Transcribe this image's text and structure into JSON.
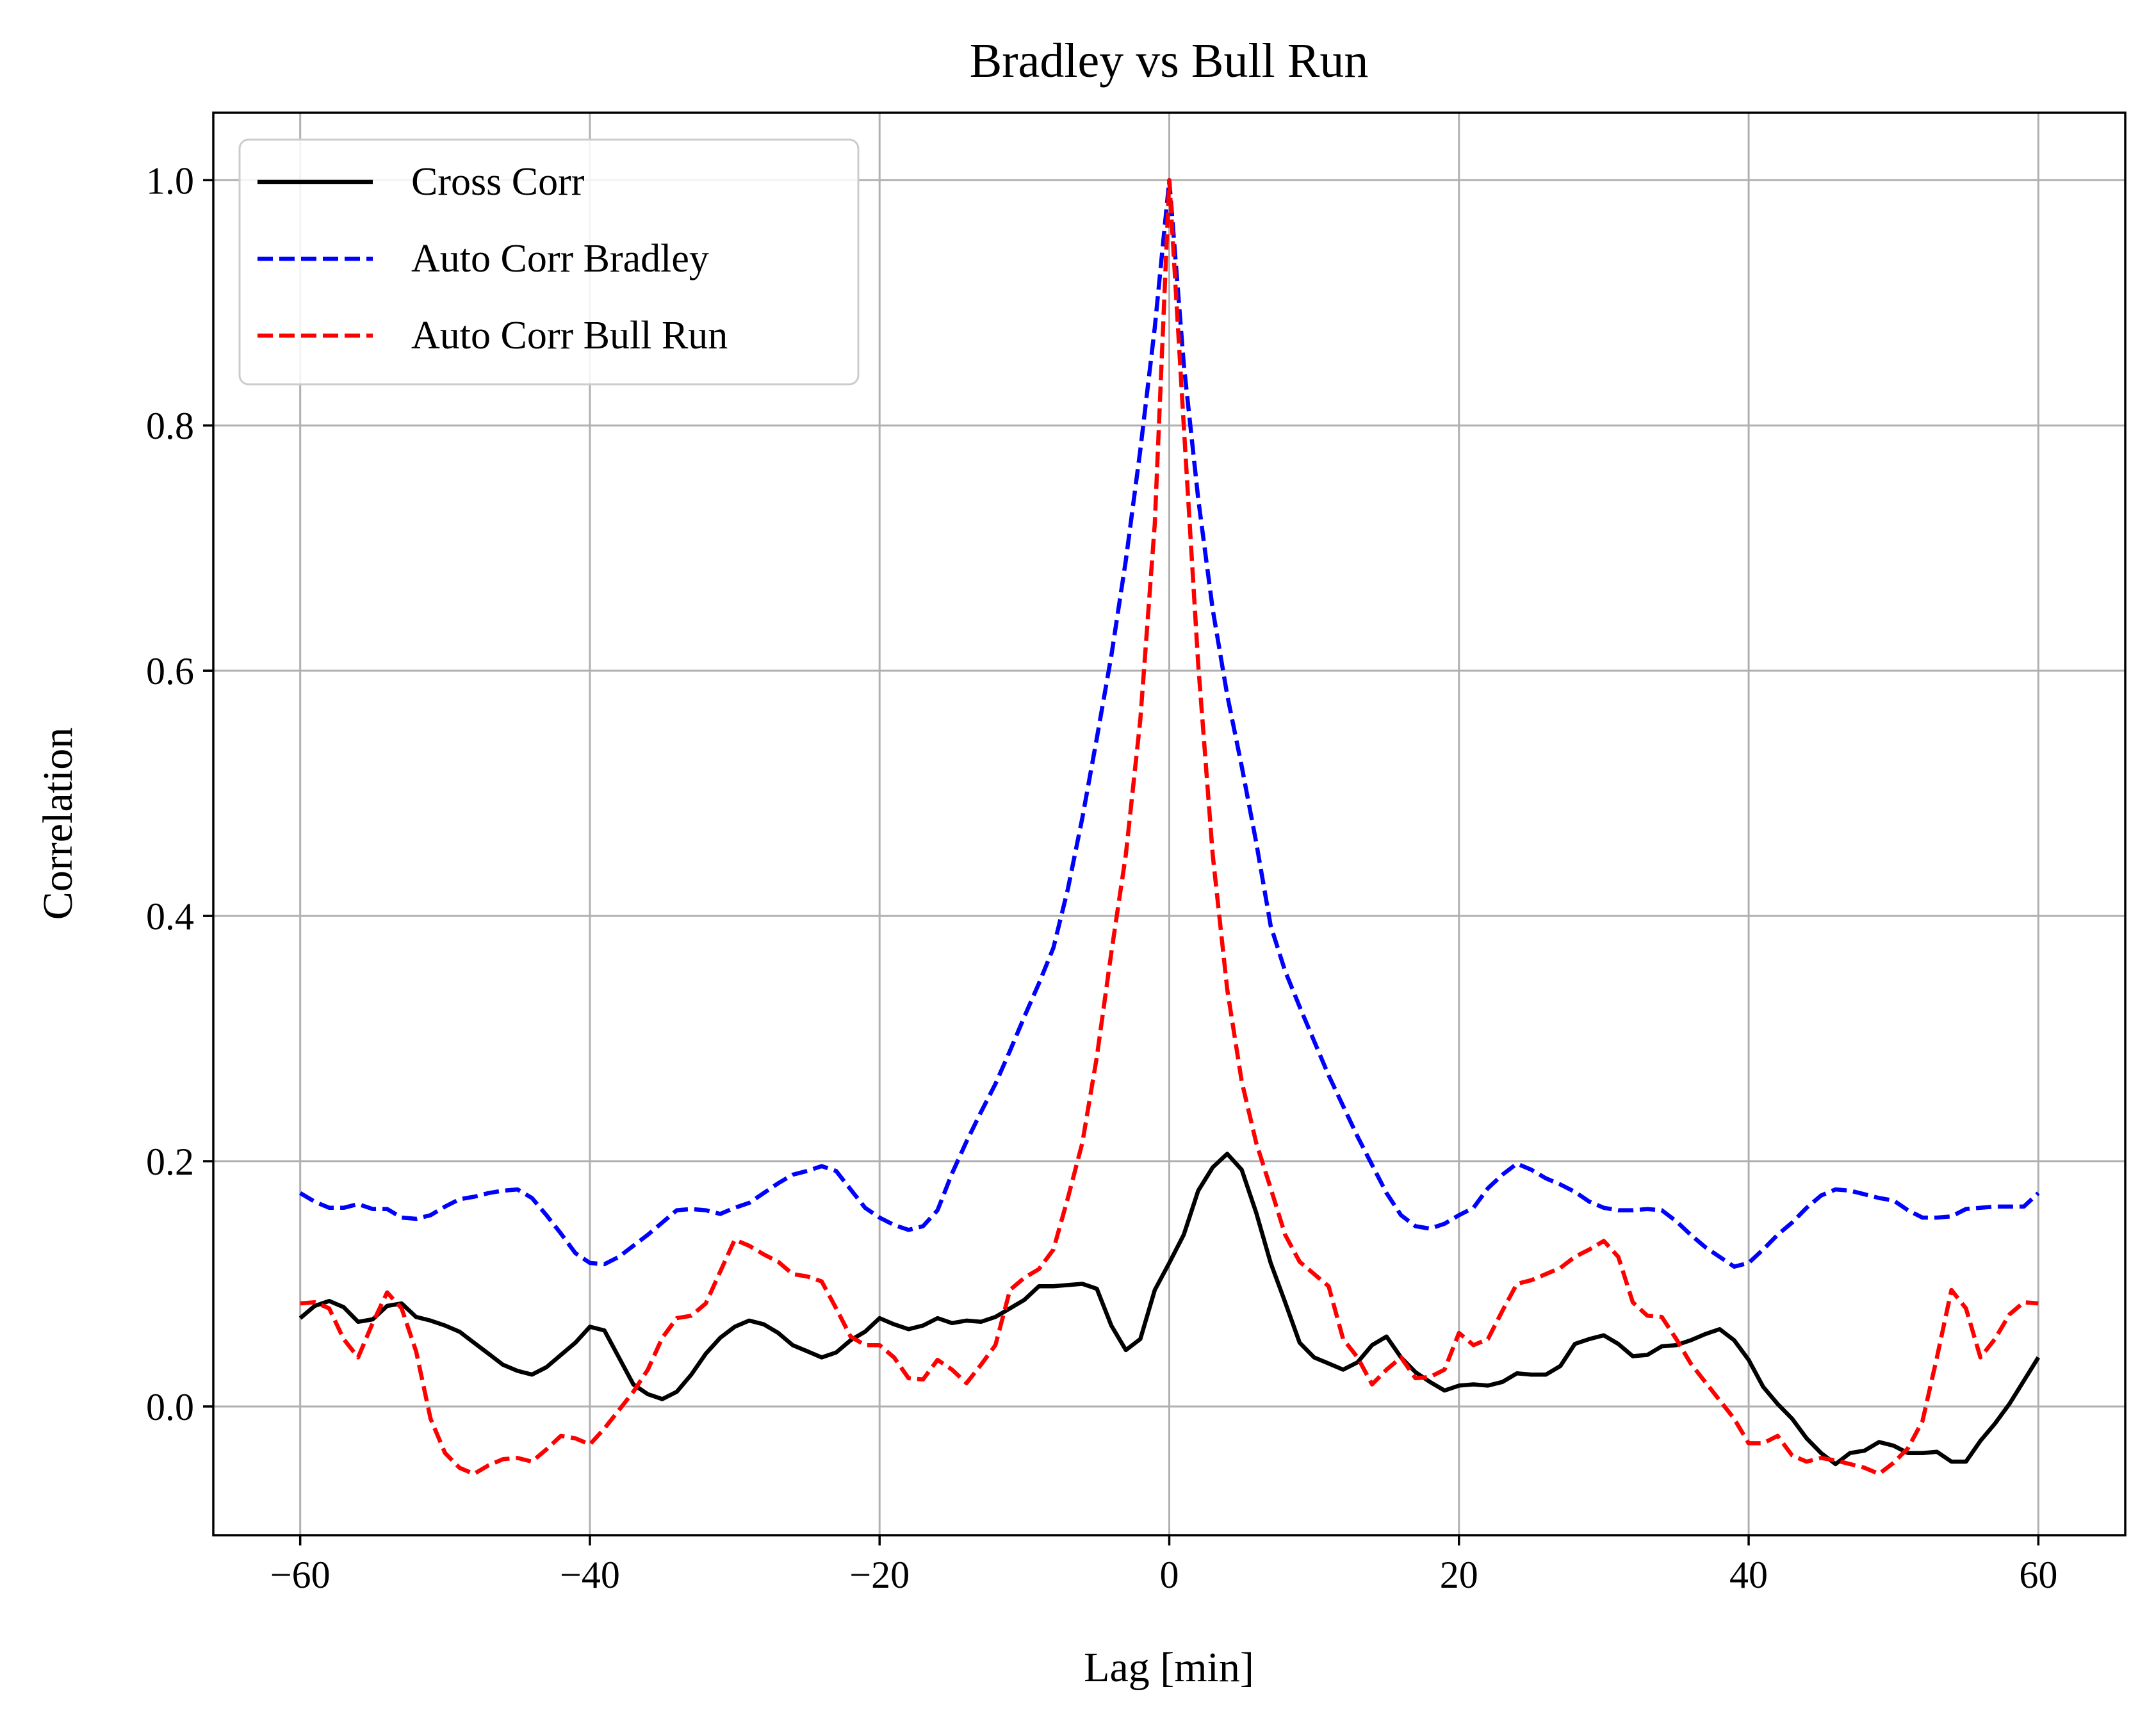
{
  "chart_data": {
    "type": "line",
    "title": "Bradley vs Bull Run",
    "xlabel": "Lag [min]",
    "ylabel": "Correlation",
    "xlim": [
      -66,
      66
    ],
    "ylim": [
      -0.105,
      1.055
    ],
    "xticks": [
      -60,
      -40,
      -20,
      0,
      20,
      40,
      60
    ],
    "xtick_labels": [
      "−60",
      "−40",
      "−20",
      "0",
      "20",
      "40",
      "60"
    ],
    "yticks": [
      0.0,
      0.2,
      0.4,
      0.6,
      0.8,
      1.0
    ],
    "ytick_labels": [
      "0.0",
      "0.2",
      "0.4",
      "0.6",
      "0.8",
      "1.0"
    ],
    "grid": true,
    "legend_position": "top-left",
    "series": [
      {
        "name": "Cross Corr",
        "color": "#000000",
        "style": "solid",
        "x": [
          -60,
          -59,
          -58,
          -57,
          -56,
          -55,
          -54,
          -53,
          -52,
          -51,
          -50,
          -49,
          -48,
          -47,
          -46,
          -45,
          -44,
          -43,
          -42,
          -41,
          -40,
          -39,
          -38,
          -37,
          -36,
          -35,
          -34,
          -33,
          -32,
          -31,
          -30,
          -29,
          -28,
          -27,
          -26,
          -25,
          -24,
          -23,
          -22,
          -21,
          -20,
          -19,
          -18,
          -17,
          -16,
          -15,
          -14,
          -13,
          -12,
          -11,
          -10,
          -9,
          -8,
          -7,
          -6,
          -5,
          -4,
          -3,
          -2,
          -1,
          0,
          1,
          2,
          3,
          4,
          5,
          6,
          7,
          8,
          9,
          10,
          11,
          12,
          13,
          14,
          15,
          16,
          17,
          18,
          19,
          20,
          21,
          22,
          23,
          24,
          25,
          26,
          27,
          28,
          29,
          30,
          31,
          32,
          33,
          34,
          35,
          36,
          37,
          38,
          39,
          40,
          41,
          42,
          43,
          44,
          45,
          46,
          47,
          48,
          49,
          50,
          51,
          52,
          53,
          54,
          55,
          56,
          57,
          58,
          59,
          60
        ],
        "values": [
          0.072,
          0.082,
          0.086,
          0.081,
          0.069,
          0.071,
          0.082,
          0.084,
          0.073,
          0.07,
          0.066,
          0.061,
          0.052,
          0.043,
          0.034,
          0.029,
          0.026,
          0.032,
          0.042,
          0.052,
          0.065,
          0.062,
          0.04,
          0.018,
          0.01,
          0.006,
          0.012,
          0.026,
          0.043,
          0.056,
          0.065,
          0.07,
          0.067,
          0.06,
          0.05,
          0.045,
          0.04,
          0.044,
          0.054,
          0.061,
          0.072,
          0.067,
          0.063,
          0.066,
          0.072,
          0.068,
          0.07,
          0.069,
          0.073,
          0.08,
          0.087,
          0.098,
          0.098,
          0.099,
          0.1,
          0.096,
          0.066,
          0.046,
          0.055,
          0.095,
          0.117,
          0.14,
          0.176,
          0.195,
          0.206,
          0.193,
          0.158,
          0.117,
          0.085,
          0.052,
          0.04,
          0.035,
          0.03,
          0.036,
          0.05,
          0.057,
          0.04,
          0.028,
          0.02,
          0.013,
          0.017,
          0.018,
          0.017,
          0.02,
          0.027,
          0.026,
          0.026,
          0.033,
          0.051,
          0.055,
          0.058,
          0.051,
          0.041,
          0.042,
          0.049,
          0.05,
          0.054,
          0.059,
          0.063,
          0.054,
          0.038,
          0.016,
          0.002,
          -0.01,
          -0.026,
          -0.038,
          -0.047,
          -0.038,
          -0.036,
          -0.029,
          -0.032,
          -0.038,
          -0.038,
          -0.037,
          -0.045,
          -0.045,
          -0.028,
          -0.014,
          0.002,
          0.021,
          0.04
        ]
      },
      {
        "name": "Auto Corr Bradley",
        "color": "#0000ff",
        "style": "dashed",
        "x": [
          -60,
          -59,
          -58,
          -57,
          -56,
          -55,
          -54,
          -53,
          -52,
          -51,
          -50,
          -49,
          -48,
          -47,
          -46,
          -45,
          -44,
          -43,
          -42,
          -41,
          -40,
          -39,
          -38,
          -37,
          -36,
          -35,
          -34,
          -33,
          -32,
          -31,
          -30,
          -29,
          -28,
          -27,
          -26,
          -25,
          -24,
          -23,
          -22,
          -21,
          -20,
          -19,
          -18,
          -17,
          -16,
          -15,
          -14,
          -13,
          -12,
          -11,
          -10,
          -9,
          -8,
          -7,
          -6,
          -5,
          -4,
          -3,
          -2,
          -1,
          0,
          1,
          2,
          3,
          4,
          5,
          6,
          7,
          8,
          9,
          10,
          11,
          12,
          13,
          14,
          15,
          16,
          17,
          18,
          19,
          20,
          21,
          22,
          23,
          24,
          25,
          26,
          27,
          28,
          29,
          30,
          31,
          32,
          33,
          34,
          35,
          36,
          37,
          38,
          39,
          40,
          41,
          42,
          43,
          44,
          45,
          46,
          47,
          48,
          49,
          50,
          51,
          52,
          53,
          54,
          55,
          56,
          57,
          58,
          59,
          60
        ],
        "values": [
          0.174,
          0.167,
          0.162,
          0.162,
          0.165,
          0.161,
          0.161,
          0.154,
          0.153,
          0.156,
          0.163,
          0.169,
          0.171,
          0.174,
          0.176,
          0.177,
          0.17,
          0.156,
          0.141,
          0.125,
          0.117,
          0.116,
          0.122,
          0.131,
          0.14,
          0.15,
          0.16,
          0.161,
          0.16,
          0.157,
          0.162,
          0.166,
          0.174,
          0.182,
          0.189,
          0.192,
          0.196,
          0.192,
          0.177,
          0.162,
          0.154,
          0.148,
          0.144,
          0.147,
          0.16,
          0.19,
          0.216,
          0.24,
          0.263,
          0.29,
          0.318,
          0.345,
          0.374,
          0.422,
          0.48,
          0.545,
          0.612,
          0.69,
          0.78,
          0.88,
          1.0,
          0.85,
          0.74,
          0.65,
          0.58,
          0.522,
          0.46,
          0.392,
          0.355,
          0.326,
          0.298,
          0.27,
          0.245,
          0.22,
          0.197,
          0.174,
          0.156,
          0.147,
          0.145,
          0.149,
          0.156,
          0.162,
          0.178,
          0.189,
          0.198,
          0.193,
          0.186,
          0.181,
          0.175,
          0.167,
          0.162,
          0.16,
          0.16,
          0.161,
          0.16,
          0.151,
          0.14,
          0.13,
          0.122,
          0.114,
          0.117,
          0.128,
          0.14,
          0.15,
          0.162,
          0.172,
          0.177,
          0.176,
          0.173,
          0.17,
          0.168,
          0.16,
          0.154,
          0.154,
          0.155,
          0.161,
          0.162,
          0.163,
          0.163,
          0.163,
          0.174
        ]
      },
      {
        "name": "Auto Corr Bull Run",
        "color": "#ff0000",
        "style": "dashed",
        "x": [
          -60,
          -59,
          -58,
          -57,
          -56,
          -55,
          -54,
          -53,
          -52,
          -51,
          -50,
          -49,
          -48,
          -47,
          -46,
          -45,
          -44,
          -43,
          -42,
          -41,
          -40,
          -39,
          -38,
          -37,
          -36,
          -35,
          -34,
          -33,
          -32,
          -31,
          -30,
          -29,
          -28,
          -27,
          -26,
          -25,
          -24,
          -23,
          -22,
          -21,
          -20,
          -19,
          -18,
          -17,
          -16,
          -15,
          -14,
          -13,
          -12,
          -11,
          -10,
          -9,
          -8,
          -7,
          -6,
          -5,
          -4,
          -3,
          -2,
          -1,
          0,
          1,
          2,
          3,
          4,
          5,
          6,
          7,
          8,
          9,
          10,
          11,
          12,
          13,
          14,
          15,
          16,
          17,
          18,
          19,
          20,
          21,
          22,
          23,
          24,
          25,
          26,
          27,
          28,
          29,
          30,
          31,
          32,
          33,
          34,
          35,
          36,
          37,
          38,
          39,
          40,
          41,
          42,
          43,
          44,
          45,
          46,
          47,
          48,
          49,
          50,
          51,
          52,
          53,
          54,
          55,
          56,
          57,
          58,
          59,
          60
        ],
        "values": [
          0.084,
          0.085,
          0.08,
          0.055,
          0.04,
          0.068,
          0.093,
          0.08,
          0.045,
          -0.01,
          -0.038,
          -0.05,
          -0.055,
          -0.048,
          -0.043,
          -0.042,
          -0.045,
          -0.035,
          -0.024,
          -0.026,
          -0.031,
          -0.018,
          -0.003,
          0.012,
          0.03,
          0.056,
          0.072,
          0.074,
          0.084,
          0.11,
          0.136,
          0.131,
          0.124,
          0.118,
          0.108,
          0.106,
          0.102,
          0.08,
          0.057,
          0.05,
          0.05,
          0.04,
          0.023,
          0.022,
          0.038,
          0.03,
          0.019,
          0.034,
          0.05,
          0.095,
          0.105,
          0.112,
          0.128,
          0.17,
          0.215,
          0.285,
          0.37,
          0.45,
          0.56,
          0.72,
          1.0,
          0.8,
          0.605,
          0.45,
          0.34,
          0.265,
          0.215,
          0.178,
          0.14,
          0.118,
          0.108,
          0.098,
          0.055,
          0.04,
          0.018,
          0.03,
          0.04,
          0.023,
          0.024,
          0.03,
          0.06,
          0.05,
          0.055,
          0.078,
          0.1,
          0.103,
          0.108,
          0.113,
          0.122,
          0.128,
          0.135,
          0.122,
          0.085,
          0.074,
          0.073,
          0.055,
          0.035,
          0.02,
          0.005,
          -0.01,
          -0.03,
          -0.03,
          -0.024,
          -0.04,
          -0.045,
          -0.042,
          -0.044,
          -0.047,
          -0.05,
          -0.055,
          -0.046,
          -0.034,
          -0.012,
          0.04,
          0.095,
          0.08,
          0.04,
          0.055,
          0.075,
          0.085,
          0.084
        ]
      }
    ]
  }
}
